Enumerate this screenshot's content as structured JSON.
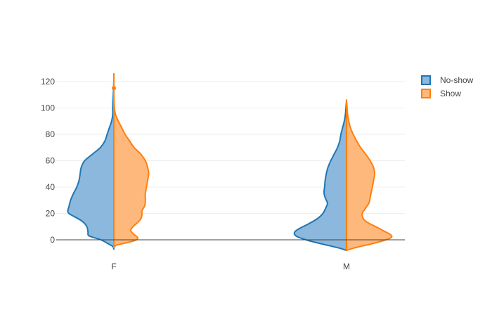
{
  "chart_data": {
    "type": "violin",
    "title": "",
    "xlabel": "",
    "ylabel": "",
    "categories": [
      "F",
      "M"
    ],
    "ylim": [
      -10,
      130
    ],
    "yticks": [
      0,
      20,
      40,
      60,
      80,
      100,
      120
    ],
    "grid": true,
    "legend_position": "top-right",
    "series": [
      {
        "name": "No-show",
        "side": "negative",
        "color": "#1f77b4",
        "fill": "#8bb8dc",
        "groups": {
          "F": {
            "min": -7,
            "max": 121,
            "profile": [
              [
                -7,
                0.0
              ],
              [
                -5,
                0.02
              ],
              [
                -3,
                0.1
              ],
              [
                0,
                0.23
              ],
              [
                3,
                0.44
              ],
              [
                6,
                0.46
              ],
              [
                10,
                0.48
              ],
              [
                14,
                0.56
              ],
              [
                18,
                0.72
              ],
              [
                20,
                0.8
              ],
              [
                22,
                0.82
              ],
              [
                25,
                0.8
              ],
              [
                30,
                0.77
              ],
              [
                35,
                0.72
              ],
              [
                40,
                0.66
              ],
              [
                45,
                0.62
              ],
              [
                50,
                0.6
              ],
              [
                55,
                0.58
              ],
              [
                60,
                0.52
              ],
              [
                65,
                0.38
              ],
              [
                70,
                0.24
              ],
              [
                75,
                0.16
              ],
              [
                80,
                0.12
              ],
              [
                85,
                0.08
              ],
              [
                90,
                0.04
              ],
              [
                95,
                0.02
              ],
              [
                100,
                0.02
              ],
              [
                110,
                0.01
              ],
              [
                121,
                0.0
              ]
            ]
          },
          "M": {
            "min": -8,
            "max": 106,
            "profile": [
              [
                -8,
                0.0
              ],
              [
                -6,
                0.15
              ],
              [
                -3,
                0.45
              ],
              [
                0,
                0.72
              ],
              [
                3,
                0.9
              ],
              [
                6,
                0.92
              ],
              [
                9,
                0.82
              ],
              [
                12,
                0.68
              ],
              [
                16,
                0.52
              ],
              [
                20,
                0.42
              ],
              [
                25,
                0.36
              ],
              [
                28,
                0.34
              ],
              [
                32,
                0.38
              ],
              [
                36,
                0.4
              ],
              [
                40,
                0.39
              ],
              [
                45,
                0.38
              ],
              [
                50,
                0.36
              ],
              [
                55,
                0.33
              ],
              [
                60,
                0.28
              ],
              [
                65,
                0.22
              ],
              [
                70,
                0.16
              ],
              [
                75,
                0.12
              ],
              [
                80,
                0.1
              ],
              [
                85,
                0.07
              ],
              [
                90,
                0.04
              ],
              [
                95,
                0.02
              ],
              [
                100,
                0.01
              ],
              [
                106,
                0.0
              ]
            ]
          }
        }
      },
      {
        "name": "Show",
        "side": "positive",
        "color": "#ff7f0e",
        "fill": "#ffb87b",
        "groups": {
          "F": {
            "min": -6,
            "max": 126,
            "outliers": [
              115
            ],
            "profile": [
              [
                -6,
                0.0
              ],
              [
                -4,
                0.05
              ],
              [
                -2,
                0.25
              ],
              [
                0,
                0.4
              ],
              [
                2,
                0.42
              ],
              [
                4,
                0.36
              ],
              [
                7,
                0.3
              ],
              [
                10,
                0.34
              ],
              [
                13,
                0.42
              ],
              [
                16,
                0.48
              ],
              [
                19,
                0.5
              ],
              [
                22,
                0.5
              ],
              [
                26,
                0.55
              ],
              [
                30,
                0.56
              ],
              [
                35,
                0.56
              ],
              [
                40,
                0.58
              ],
              [
                45,
                0.6
              ],
              [
                50,
                0.62
              ],
              [
                55,
                0.6
              ],
              [
                60,
                0.56
              ],
              [
                65,
                0.48
              ],
              [
                70,
                0.36
              ],
              [
                75,
                0.28
              ],
              [
                80,
                0.2
              ],
              [
                85,
                0.14
              ],
              [
                90,
                0.08
              ],
              [
                95,
                0.03
              ],
              [
                100,
                0.01
              ],
              [
                110,
                0.0
              ],
              [
                126,
                0.0
              ]
            ]
          },
          "M": {
            "min": -8,
            "max": 106,
            "profile": [
              [
                -8,
                0.0
              ],
              [
                -6,
                0.15
              ],
              [
                -3,
                0.45
              ],
              [
                0,
                0.7
              ],
              [
                2,
                0.8
              ],
              [
                4,
                0.78
              ],
              [
                7,
                0.65
              ],
              [
                10,
                0.52
              ],
              [
                13,
                0.38
              ],
              [
                16,
                0.3
              ],
              [
                20,
                0.28
              ],
              [
                24,
                0.34
              ],
              [
                28,
                0.4
              ],
              [
                32,
                0.42
              ],
              [
                36,
                0.44
              ],
              [
                40,
                0.46
              ],
              [
                45,
                0.48
              ],
              [
                50,
                0.5
              ],
              [
                55,
                0.48
              ],
              [
                60,
                0.42
              ],
              [
                65,
                0.34
              ],
              [
                70,
                0.25
              ],
              [
                75,
                0.18
              ],
              [
                80,
                0.12
              ],
              [
                85,
                0.07
              ],
              [
                90,
                0.04
              ],
              [
                95,
                0.02
              ],
              [
                100,
                0.01
              ],
              [
                106,
                0.0
              ]
            ]
          }
        }
      }
    ]
  }
}
